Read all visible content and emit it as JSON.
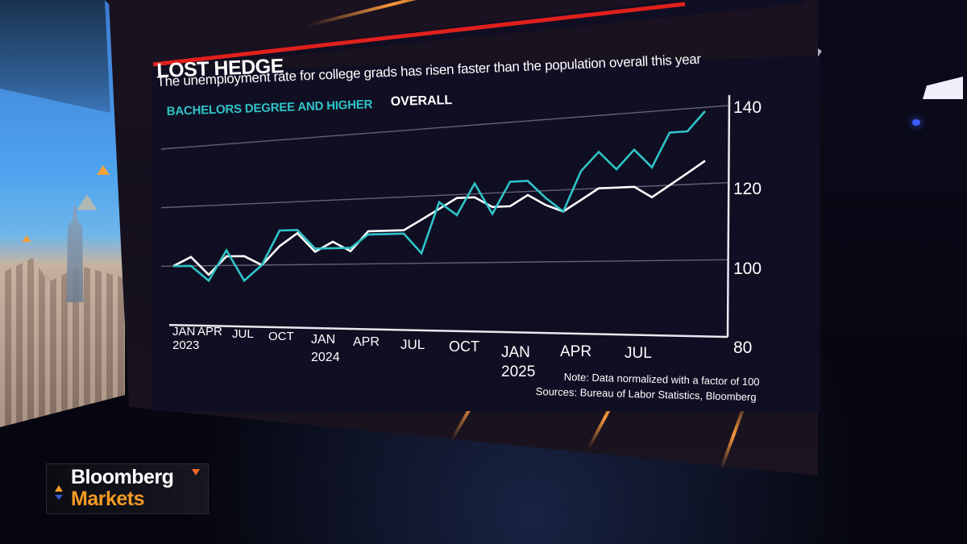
{
  "broadcast": {
    "logo": {
      "line1": "Bloomberg",
      "line2": "Markets"
    }
  },
  "chart_card": {
    "title": "LOST HEDGE",
    "subtitle": "The unemployment rate for college grads has risen faster than the population overall this year",
    "legend": [
      {
        "label": "BACHELORS DEGREE AND HIGHER",
        "color": "#2ec4c8"
      },
      {
        "label": "OVERALL",
        "color": "#ffffff"
      }
    ],
    "y_ticks": [
      "140",
      "120",
      "100",
      "80"
    ],
    "x_ticks": [
      {
        "label": "JAN",
        "year": "2023"
      },
      {
        "label": "APR",
        "year": ""
      },
      {
        "label": "JUL",
        "year": ""
      },
      {
        "label": "OCT",
        "year": ""
      },
      {
        "label": "JAN",
        "year": "2024"
      },
      {
        "label": "APR",
        "year": ""
      },
      {
        "label": "JUL",
        "year": ""
      },
      {
        "label": "OCT",
        "year": ""
      },
      {
        "label": "JAN",
        "year": "2025"
      },
      {
        "label": "APR",
        "year": ""
      },
      {
        "label": "JUL",
        "year": ""
      }
    ],
    "note": "Note: Data normalized with a factor of 100",
    "source": "Sources: Bureau of Labor Statistics, Bloomberg",
    "colors": {
      "accent_red": "#e0201c",
      "teal": "#2ec4c8",
      "white": "#ffffff",
      "background": "#100e22"
    }
  },
  "chart_data": {
    "type": "line",
    "title": "LOST HEDGE",
    "subtitle": "The unemployment rate for college grads has risen faster than the population overall this year",
    "xlabel": "",
    "ylabel": "",
    "ylim": [
      80,
      140
    ],
    "yticks": [
      80,
      100,
      120,
      140
    ],
    "grid": true,
    "legend_position": "top-left",
    "x_tick_labels": [
      "JAN 2023",
      "APR",
      "JUL",
      "OCT",
      "JAN 2024",
      "APR",
      "JUL",
      "OCT",
      "JAN 2025",
      "APR",
      "JUL"
    ],
    "x": [
      "2023-01",
      "2023-02",
      "2023-03",
      "2023-04",
      "2023-05",
      "2023-06",
      "2023-07",
      "2023-08",
      "2023-09",
      "2023-10",
      "2023-11",
      "2023-12",
      "2024-01",
      "2024-02",
      "2024-03",
      "2024-04",
      "2024-05",
      "2024-06",
      "2024-07",
      "2024-08",
      "2024-09",
      "2024-10",
      "2024-11",
      "2024-12",
      "2025-01",
      "2025-02",
      "2025-03",
      "2025-04",
      "2025-05",
      "2025-06",
      "2025-07",
      "2025-08",
      "2025-09"
    ],
    "series": [
      {
        "name": "BACHELORS DEGREE AND HIGHER",
        "color": "#2ec4c8",
        "values": [
          100,
          100,
          95,
          105,
          95,
          100,
          111,
          111,
          105,
          105,
          105,
          109,
          109,
          109,
          103,
          118,
          114,
          123,
          114,
          123,
          123,
          118,
          114,
          125,
          130,
          125,
          130,
          125,
          134,
          134,
          139,
          null,
          null
        ]
      },
      {
        "name": "OVERALL",
        "color": "#ffffff",
        "values": [
          100,
          103,
          97,
          103,
          103,
          100,
          106,
          110,
          104,
          107,
          104,
          110,
          110,
          110,
          113,
          116,
          119,
          119,
          116,
          116,
          119,
          116,
          114,
          117,
          120,
          120,
          120,
          117,
          120,
          123,
          126,
          null,
          null
        ]
      }
    ],
    "annotations": [
      "Note: Data normalized with a factor of 100",
      "Sources: Bureau of Labor Statistics, Bloomberg"
    ]
  }
}
